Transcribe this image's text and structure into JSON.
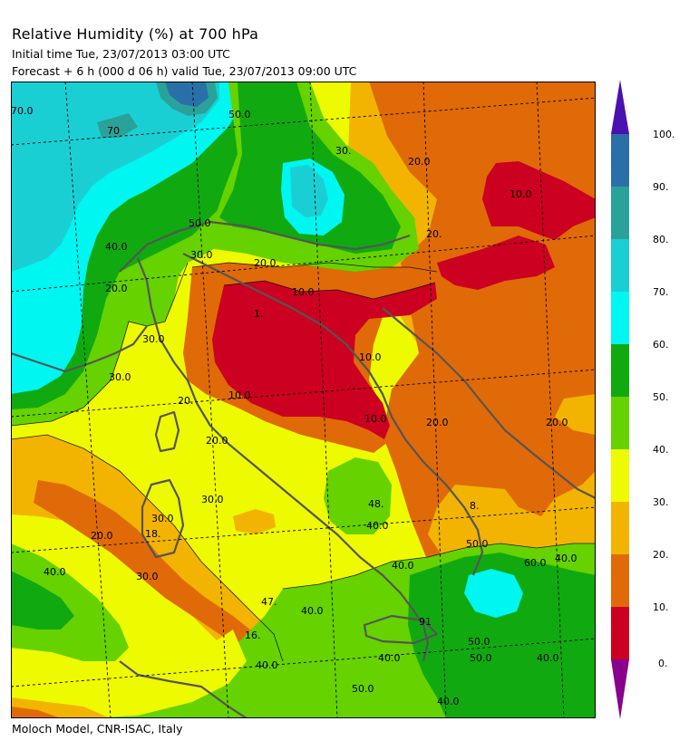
{
  "header": {
    "title": "Relative Humidity (%) at 700 hPa",
    "initial_time": "Initial time  Tue, 23/07/2013  03:00 UTC",
    "forecast": "Forecast  +   6 h  (000 d 06 h)  valid Tue, 23/07/2013 09:00 UTC"
  },
  "footer": {
    "credit": "Moloch Model, CNR-ISAC, Italy"
  },
  "colors": {
    "c0_10": "#cc0020",
    "c10_20": "#e06a08",
    "c20_30": "#f2b400",
    "c30_40": "#eefa00",
    "c40_50": "#66d200",
    "c50_60": "#10aa10",
    "c60_70": "#00f6f0",
    "c70_80": "#1acfd4",
    "c80_90": "#2aa29a",
    "c90_100": "#2a70a8",
    "over": "#4a10b0",
    "under": "#88008c",
    "coast": "#555555",
    "grid": "#000000"
  },
  "colorbar": {
    "ticks": [
      "100.",
      "90.",
      "80.",
      "70.",
      "60.",
      "50.",
      "40.",
      "30.",
      "20.",
      "10.",
      "0."
    ]
  },
  "contour_labels": [
    {
      "id": "l1",
      "text": "70.0"
    },
    {
      "id": "l2",
      "text": "70"
    },
    {
      "id": "l3",
      "text": "50.0"
    },
    {
      "id": "l4",
      "text": "50.0"
    },
    {
      "id": "l5",
      "text": "40.0"
    },
    {
      "id": "l6",
      "text": "30.0"
    },
    {
      "id": "l7",
      "text": "30."
    },
    {
      "id": "l8",
      "text": "20.0"
    },
    {
      "id": "l9",
      "text": "20."
    },
    {
      "id": "l10",
      "text": "20.0"
    },
    {
      "id": "l11",
      "text": "10.0"
    },
    {
      "id": "l12",
      "text": "30.0"
    },
    {
      "id": "l13",
      "text": "30.0"
    },
    {
      "id": "l14",
      "text": "20.0"
    },
    {
      "id": "l15",
      "text": "20."
    },
    {
      "id": "l16",
      "text": "1."
    },
    {
      "id": "l17",
      "text": "10.0"
    },
    {
      "id": "l18",
      "text": "10.0"
    },
    {
      "id": "l19",
      "text": "10.0"
    },
    {
      "id": "l20",
      "text": "10.0"
    },
    {
      "id": "l21",
      "text": "20.0"
    },
    {
      "id": "l22",
      "text": "20.0"
    },
    {
      "id": "l23",
      "text": "20.0"
    },
    {
      "id": "l24",
      "text": "30.0"
    },
    {
      "id": "l25",
      "text": "48."
    },
    {
      "id": "l26",
      "text": "40.0"
    },
    {
      "id": "l27",
      "text": "8."
    },
    {
      "id": "l28",
      "text": "20.0"
    },
    {
      "id": "l29",
      "text": "18."
    },
    {
      "id": "l30",
      "text": "30.0"
    },
    {
      "id": "l31",
      "text": "30.0"
    },
    {
      "id": "l32",
      "text": "40.0"
    },
    {
      "id": "l33",
      "text": "40.0"
    },
    {
      "id": "l34",
      "text": "40.0"
    },
    {
      "id": "l35",
      "text": "47."
    },
    {
      "id": "l36",
      "text": "40.0"
    },
    {
      "id": "l37",
      "text": "16."
    },
    {
      "id": "l38",
      "text": "40.0"
    },
    {
      "id": "l39",
      "text": "50.0"
    },
    {
      "id": "l40",
      "text": "40.0"
    },
    {
      "id": "l41",
      "text": "50.0"
    },
    {
      "id": "l42",
      "text": "50.0"
    },
    {
      "id": "l43",
      "text": "60.0"
    },
    {
      "id": "l44",
      "text": "50.0"
    },
    {
      "id": "l45",
      "text": "91"
    },
    {
      "id": "l46",
      "text": "40.0"
    },
    {
      "id": "l47",
      "text": "40.0"
    }
  ]
}
